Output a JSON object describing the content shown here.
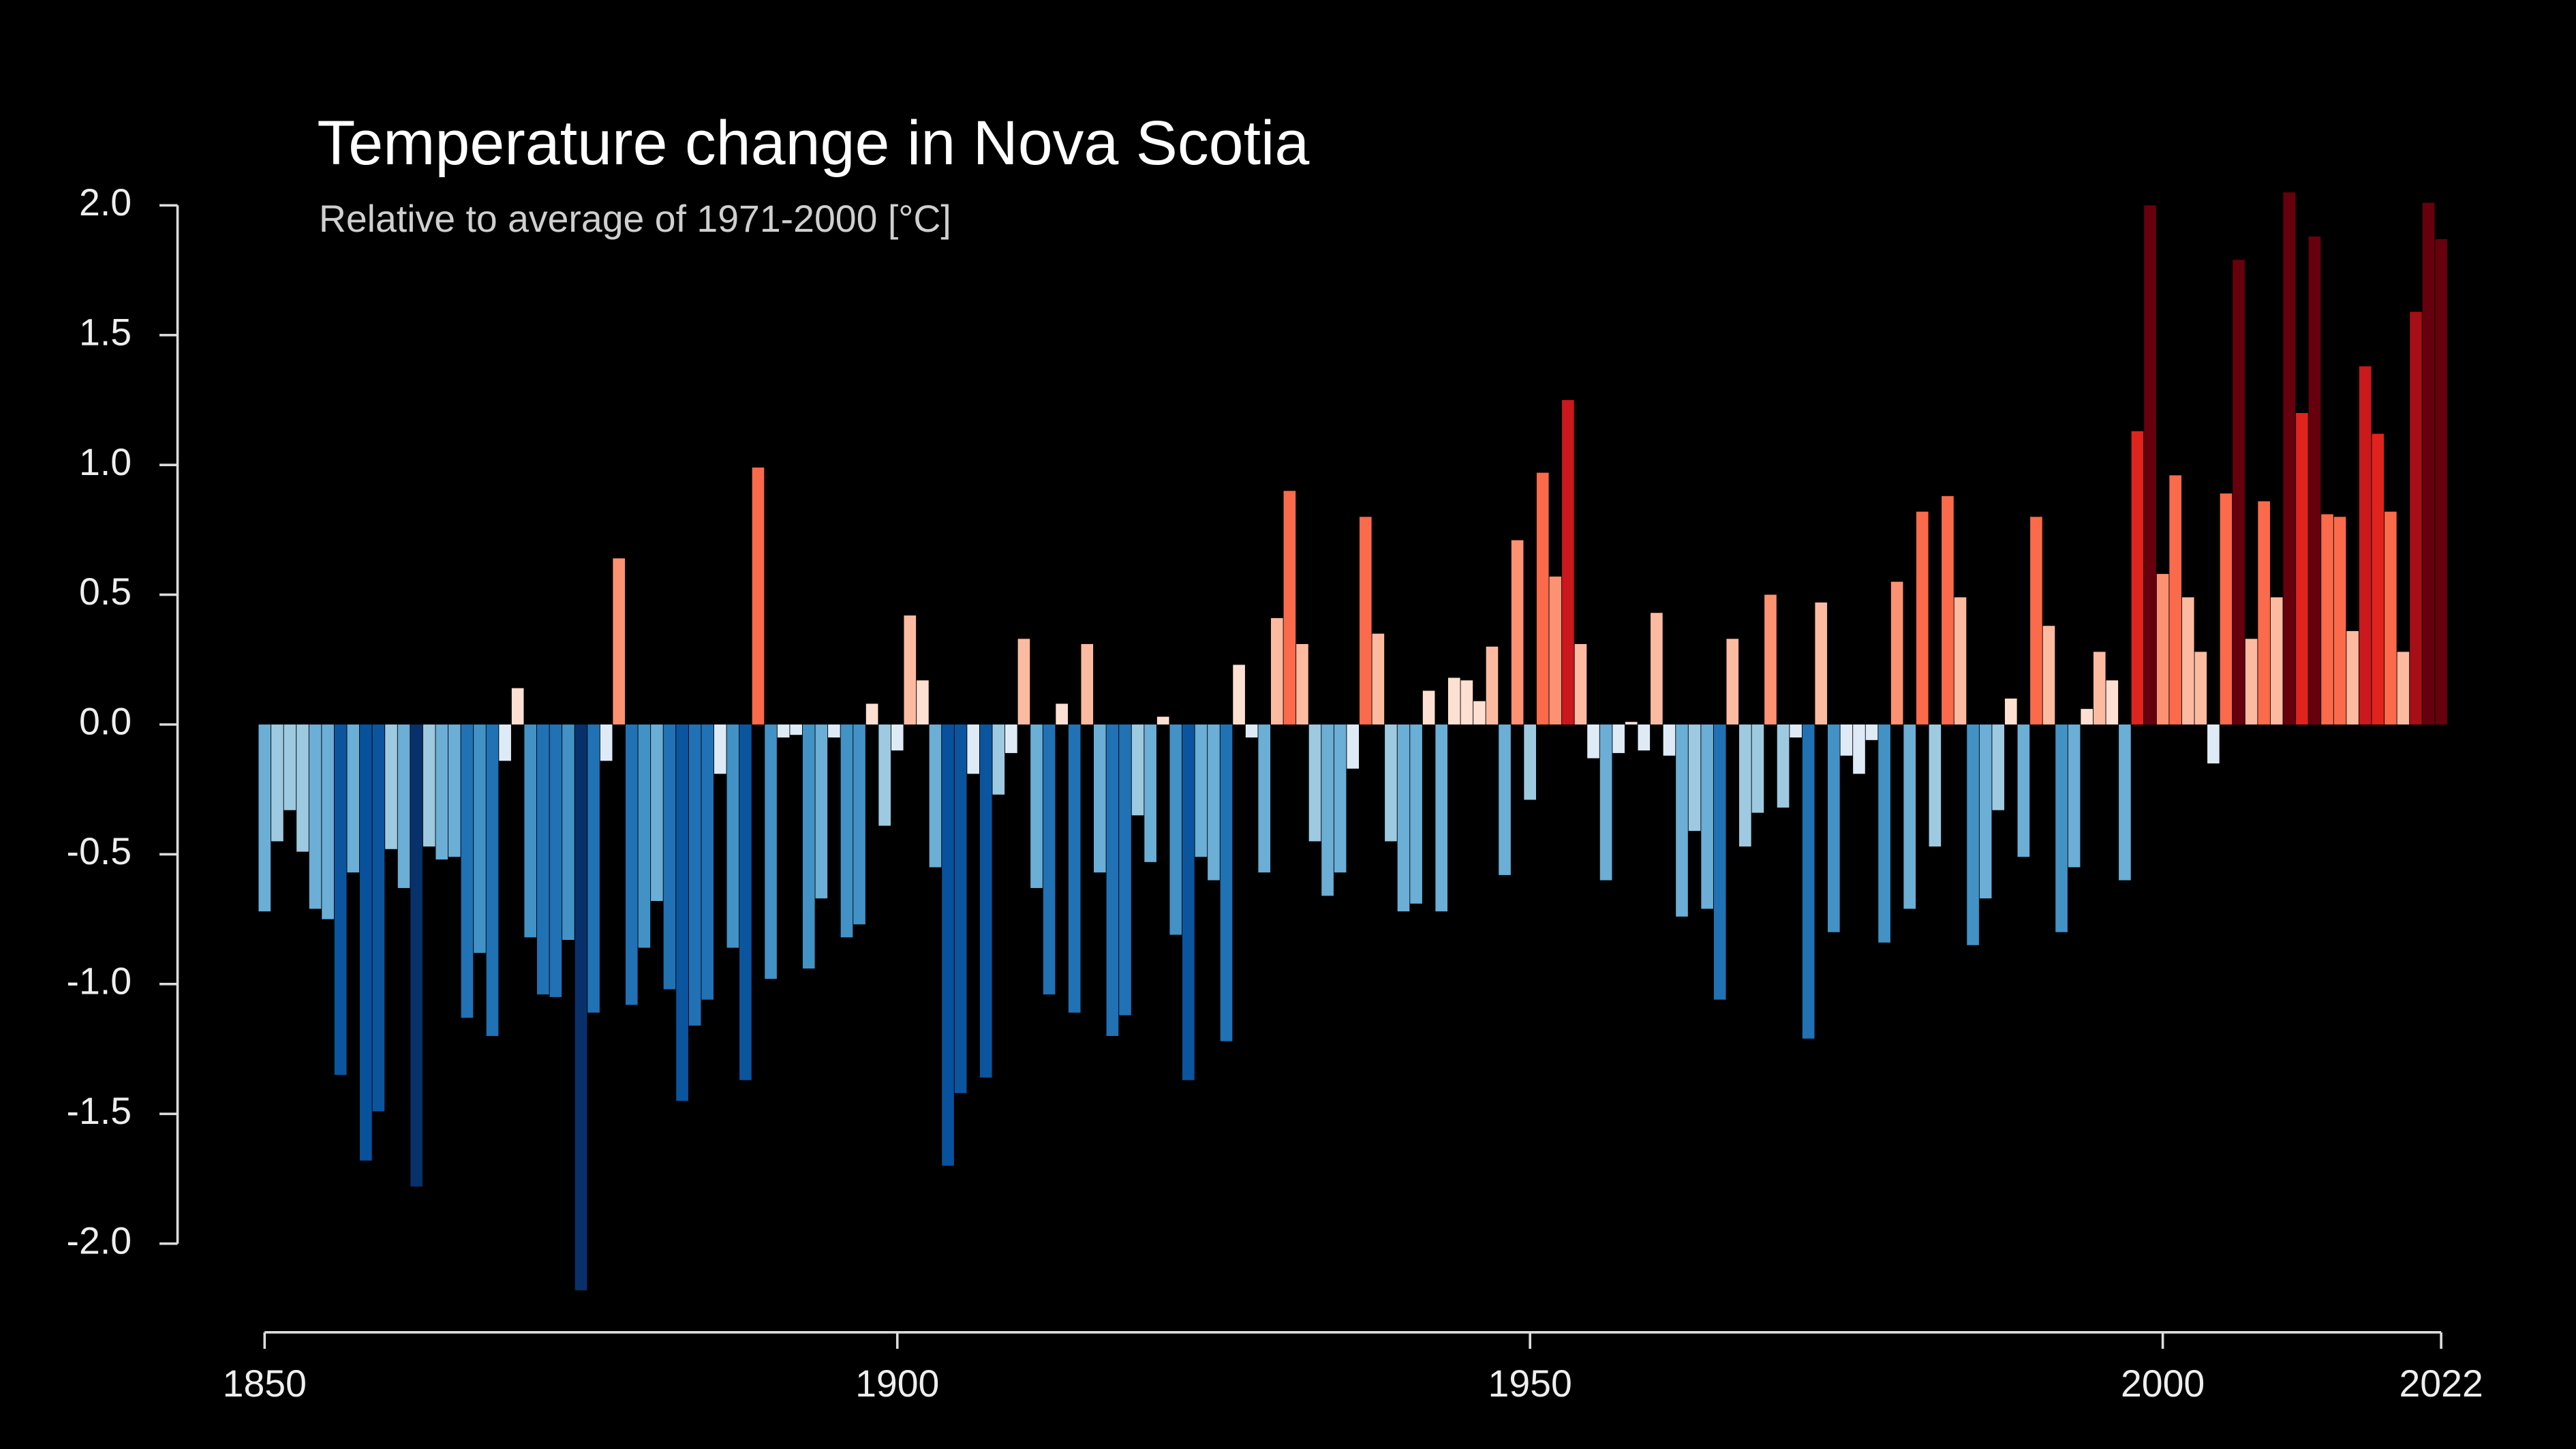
{
  "chart_data": {
    "type": "bar",
    "title": "Temperature change in Nova Scotia",
    "subtitle": "Relative to average of 1971-2000  [°C]",
    "xlim": [
      1850,
      2022
    ],
    "xticks": [
      1850,
      1900,
      1950,
      2000,
      2022
    ],
    "ylim": [
      -2,
      2
    ],
    "yticks": [
      {
        "value": 2,
        "label": "2.0"
      },
      {
        "value": 1.5,
        "label": "1.5"
      },
      {
        "value": 1,
        "label": "1.0"
      },
      {
        "value": 0.5,
        "label": "0.5"
      },
      {
        "value": 0,
        "label": "0.0"
      },
      {
        "value": -0.5,
        "label": "-0.5"
      },
      {
        "value": -1,
        "label": "-1.0"
      },
      {
        "value": -1.5,
        "label": "-1.5"
      },
      {
        "value": -2,
        "label": "-2.0"
      }
    ],
    "colors": [
      "#08306b",
      "#08519c",
      "#0b559f",
      "#2171b5",
      "#4292c6",
      "#6baed6",
      "#9ecae1",
      "#deebf7",
      "#fee0d2",
      "#fcbba1",
      "#fc9272",
      "#fb6a4a",
      "#e0231d",
      "#cb181d",
      "#a50f15",
      "#67000d"
    ],
    "x": [
      1850,
      1851,
      1852,
      1853,
      1854,
      1855,
      1856,
      1857,
      1858,
      1859,
      1860,
      1861,
      1862,
      1863,
      1864,
      1865,
      1866,
      1867,
      1868,
      1869,
      1870,
      1871,
      1872,
      1873,
      1874,
      1875,
      1876,
      1877,
      1878,
      1879,
      1880,
      1881,
      1882,
      1883,
      1884,
      1885,
      1886,
      1887,
      1888,
      1889,
      1890,
      1891,
      1892,
      1893,
      1894,
      1895,
      1896,
      1897,
      1898,
      1899,
      1900,
      1901,
      1902,
      1903,
      1904,
      1905,
      1906,
      1907,
      1908,
      1909,
      1910,
      1911,
      1912,
      1913,
      1914,
      1915,
      1916,
      1917,
      1918,
      1919,
      1920,
      1921,
      1922,
      1923,
      1924,
      1925,
      1926,
      1927,
      1928,
      1929,
      1930,
      1931,
      1932,
      1933,
      1934,
      1935,
      1936,
      1937,
      1938,
      1939,
      1940,
      1941,
      1942,
      1943,
      1944,
      1945,
      1946,
      1947,
      1948,
      1949,
      1950,
      1951,
      1952,
      1953,
      1954,
      1955,
      1956,
      1957,
      1958,
      1959,
      1960,
      1961,
      1962,
      1963,
      1964,
      1965,
      1966,
      1967,
      1968,
      1969,
      1970,
      1971,
      1972,
      1973,
      1974,
      1975,
      1976,
      1977,
      1978,
      1979,
      1980,
      1981,
      1982,
      1983,
      1984,
      1985,
      1986,
      1987,
      1988,
      1989,
      1990,
      1991,
      1992,
      1993,
      1994,
      1995,
      1996,
      1997,
      1998,
      1999,
      2000,
      2001,
      2002,
      2003,
      2004,
      2005,
      2006,
      2007,
      2008,
      2009,
      2010,
      2011,
      2012,
      2013,
      2014,
      2015,
      2016,
      2017,
      2018,
      2019,
      2020,
      2021,
      2022
    ],
    "values": [
      -0.72,
      -0.45,
      -0.33,
      -0.49,
      -0.71,
      -0.75,
      -1.35,
      -0.57,
      -1.68,
      -1.49,
      -0.48,
      -0.63,
      -1.78,
      -0.47,
      -0.52,
      -0.51,
      -1.13,
      -0.88,
      -1.2,
      -0.14,
      0.14,
      -0.82,
      -1.04,
      -1.05,
      -0.83,
      -2.18,
      -1.11,
      -0.14,
      0.64,
      -1.08,
      -0.86,
      -0.68,
      -1.02,
      -1.45,
      -1.16,
      -1.06,
      -0.19,
      -0.86,
      -1.37,
      0.99,
      -0.98,
      -0.05,
      -0.04,
      -0.94,
      -0.67,
      -0.05,
      -0.82,
      -0.77,
      0.08,
      -0.39,
      -0.1,
      0.42,
      0.17,
      -0.55,
      -1.7,
      -1.42,
      -0.19,
      -1.36,
      -0.27,
      -0.11,
      0.33,
      -0.63,
      -1.04,
      0.08,
      -1.11,
      0.31,
      -0.57,
      -1.2,
      -1.12,
      -0.35,
      -0.53,
      0.03,
      -0.81,
      -1.37,
      -0.51,
      -0.6,
      -1.22,
      0.23,
      -0.05,
      -0.57,
      0.41,
      0.9,
      0.31,
      -0.45,
      -0.66,
      -0.57,
      -0.17,
      0.8,
      0.35,
      -0.45,
      -0.72,
      -0.69,
      0.13,
      -0.72,
      0.18,
      0.17,
      0.09,
      0.3,
      -0.58,
      0.71,
      -0.29,
      0.97,
      0.57,
      1.25,
      0.31,
      -0.13,
      -0.6,
      -0.11,
      0.01,
      -0.1,
      0.43,
      -0.12,
      -0.74,
      -0.41,
      -0.71,
      -1.06,
      0.33,
      -0.47,
      -0.34,
      0.5,
      -0.32,
      -0.05,
      -1.21,
      0.47,
      -0.8,
      -0.12,
      -0.19,
      -0.06,
      -0.84,
      0.55,
      -0.71,
      0.82,
      -0.47,
      0.88,
      0.49,
      -0.85,
      -0.67,
      -0.33,
      0.1,
      -0.51,
      0.8,
      0.38,
      -0.8,
      -0.55,
      0.06,
      0.28,
      0.17,
      -0.6,
      1.13,
      2.0,
      0.58,
      0.96,
      0.49,
      0.28,
      -0.15,
      0.89,
      1.79,
      0.33,
      0.86,
      0.49,
      2.05,
      1.2,
      1.88,
      0.81,
      0.8,
      0.36,
      1.38,
      1.12,
      0.82,
      0.28,
      1.59,
      2.01,
      1.87
    ]
  }
}
